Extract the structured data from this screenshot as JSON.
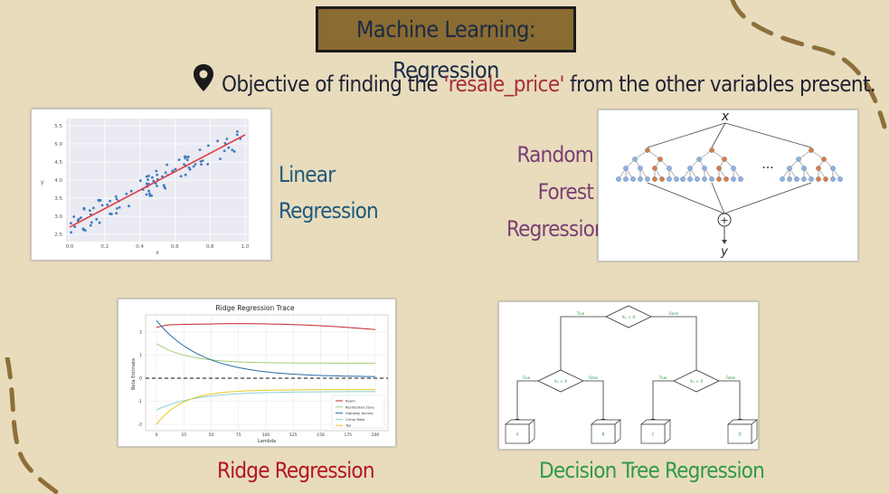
{
  "title": "Machine Learning: Regression",
  "objective": {
    "prefix": "Objective of finding the ",
    "highlight": "'resale_price'",
    "suffix": " from the other variables present."
  },
  "labels": {
    "linear_line1": "Linear",
    "linear_line2": "Regression",
    "rf_line1": "Random",
    "rf_line2": "Forest",
    "rf_line3": "Regression",
    "ridge": "Ridge Regression",
    "dt": "Decision Tree Regression"
  },
  "linear_chart": {
    "xlabel": "x",
    "ylabel": "y",
    "xticks": [
      "0.0",
      "0.2",
      "0.4",
      "0.6",
      "0.8",
      "1.0"
    ],
    "yticks": [
      "2.5",
      "3.0",
      "3.5",
      "4.0",
      "4.5",
      "5.0",
      "5.5"
    ]
  },
  "rf_diagram": {
    "input": "x",
    "output": "y",
    "ellipsis": "···",
    "combine": "+"
  },
  "ridge_chart": {
    "title": "Ridge Regression Trace",
    "xlabel": "Lambda",
    "ylabel": "Beta Estimate",
    "xticks": [
      "0",
      "25",
      "50",
      "75",
      "100",
      "125",
      "150",
      "175",
      "200"
    ],
    "yticks": [
      "2",
      "1",
      "0",
      "-1",
      "-2"
    ],
    "legend": [
      "Room",
      "Residential Zone",
      "Highway Access",
      "Crime Rate",
      "Tax"
    ],
    "colors": [
      "#c0262d",
      "#9fcf7a",
      "#2b6ca8",
      "#8ad0d8",
      "#e8c81a"
    ]
  },
  "dt_diagram": {
    "root": "X₁ < 0",
    "left_edge": "True",
    "right_edge": "False",
    "left_node": "X₂ < 0",
    "right_node": "X₃ < 0",
    "leaf_edges": [
      "True",
      "False",
      "True",
      "False"
    ],
    "leaves": [
      "A",
      "B",
      "C",
      "D"
    ]
  },
  "accent_colors": {
    "background": "#e8dcbd",
    "title_box": "#8a6b32",
    "dashes": "#8e6f3a"
  }
}
